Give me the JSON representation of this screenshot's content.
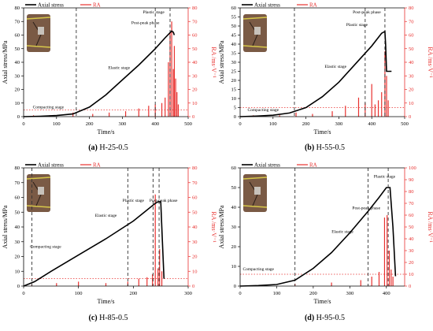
{
  "legend": {
    "stress_label": "Axial stress",
    "ra_label": "RA"
  },
  "colors": {
    "stress": "#000000",
    "ra": "#e8312f",
    "guide": "#333333"
  },
  "chart_data": [
    {
      "id": "a",
      "type": "line",
      "caption_letter": "(a)",
      "caption_text": "H-25-0.5",
      "xlabel": "Time/s",
      "ylabel": "Axial stress/MPa",
      "y2label": "RA /ms·V⁻¹",
      "xlim": [
        0,
        500
      ],
      "ylim": [
        0,
        80
      ],
      "y2lim": [
        0,
        80
      ],
      "xticks": [
        0,
        100,
        200,
        300,
        400,
        500
      ],
      "yticks": [
        0,
        10,
        20,
        30,
        40,
        50,
        60,
        70,
        80
      ],
      "y2ticks": [
        0,
        10,
        20,
        30,
        40,
        50,
        60,
        70,
        80
      ],
      "series": [
        {
          "name": "Axial stress",
          "axis": "left",
          "x": [
            0,
            50,
            100,
            150,
            200,
            250,
            300,
            350,
            400,
            430,
            450,
            455,
            458
          ],
          "y": [
            0,
            0.3,
            0.8,
            2,
            7,
            16,
            27,
            38,
            50,
            58,
            63,
            62,
            60
          ]
        },
        {
          "name": "RA",
          "axis": "right",
          "kind": "bars",
          "x": [
            30,
            80,
            150,
            210,
            260,
            310,
            350,
            380,
            400,
            420,
            430,
            440,
            445,
            450,
            455,
            458,
            462,
            466,
            470
          ],
          "y": [
            1,
            1,
            3,
            2,
            3,
            4,
            6,
            8,
            9,
            10,
            14,
            40,
            62,
            70,
            35,
            52,
            28,
            18,
            9
          ]
        }
      ],
      "threshold_y": 5,
      "dividers": [
        160,
        400,
        445
      ],
      "annotations": [
        {
          "text": "Compacting stage",
          "x": 75,
          "y": 6
        },
        {
          "text": "Elastic stage",
          "x": 290,
          "y": 35
        },
        {
          "text": "Plastic stage",
          "x": 395,
          "y": 76
        },
        {
          "text": "Post-peak phase",
          "x": 370,
          "y": 68
        }
      ]
    },
    {
      "id": "b",
      "type": "line",
      "caption_letter": "(b)",
      "caption_text": "H-55-0.5",
      "xlabel": "Time/s",
      "ylabel": "Axial stress/MPa",
      "y2label": "RA /ms·V⁻¹",
      "xlim": [
        0,
        500
      ],
      "ylim": [
        0,
        60
      ],
      "y2lim": [
        0,
        80
      ],
      "xticks": [
        0,
        100,
        200,
        300,
        400,
        500
      ],
      "yticks": [
        0,
        5,
        10,
        15,
        20,
        25,
        30,
        35,
        40,
        45,
        50,
        55,
        60
      ],
      "y2ticks": [
        0,
        10,
        20,
        30,
        40,
        50,
        60,
        70,
        80
      ],
      "series": [
        {
          "name": "Axial stress",
          "axis": "left",
          "x": [
            0,
            50,
            100,
            150,
            200,
            250,
            300,
            350,
            400,
            430,
            440,
            442,
            445,
            460
          ],
          "y": [
            0,
            0.3,
            0.8,
            2,
            5,
            11,
            19,
            29,
            39,
            46,
            47,
            40,
            25,
            25
          ]
        },
        {
          "name": "RA",
          "axis": "right",
          "kind": "bars",
          "x": [
            40,
            120,
            170,
            220,
            280,
            320,
            360,
            380,
            400,
            410,
            420,
            430,
            440,
            445,
            450
          ],
          "y": [
            1,
            1,
            3,
            2,
            4,
            8,
            14,
            10,
            24,
            9,
            12,
            18,
            48,
            30,
            12
          ]
        }
      ],
      "threshold_y": 5,
      "dividers": [
        165,
        380,
        440
      ],
      "annotations": [
        {
          "text": "Compacting stage",
          "x": 70,
          "y": 3
        },
        {
          "text": "Elastic stage",
          "x": 290,
          "y": 27
        },
        {
          "text": "Plastic stage",
          "x": 355,
          "y": 50
        },
        {
          "text": "Post-peak phase",
          "x": 385,
          "y": 57
        }
      ]
    },
    {
      "id": "c",
      "type": "line",
      "caption_letter": "(c)",
      "caption_text": "H-85-0.5",
      "xlabel": "Time/s",
      "ylabel": "Axial stress/MPa",
      "y2label": "RA /ms·V⁻¹",
      "xlim": [
        0,
        300
      ],
      "ylim": [
        0,
        80
      ],
      "y2lim": [
        0,
        80
      ],
      "xticks": [
        0,
        100,
        200,
        300
      ],
      "yticks": [
        0,
        10,
        20,
        30,
        40,
        50,
        60,
        70,
        80
      ],
      "y2ticks": [
        0,
        10,
        20,
        30,
        40,
        50,
        60,
        70,
        80
      ],
      "series": [
        {
          "name": "Axial stress",
          "axis": "left",
          "x": [
            0,
            20,
            50,
            100,
            150,
            200,
            220,
            240,
            245,
            250,
            253,
            256
          ],
          "y": [
            0,
            3,
            10,
            21,
            32,
            44,
            50,
            56,
            57,
            57,
            30,
            5
          ]
        },
        {
          "name": "RA",
          "axis": "right",
          "kind": "bars",
          "x": [
            15,
            60,
            100,
            150,
            190,
            210,
            225,
            235,
            240,
            245,
            248,
            252
          ],
          "y": [
            1,
            2,
            3,
            2,
            3,
            5,
            6,
            8,
            62,
            12,
            25,
            10
          ]
        }
      ],
      "threshold_y": 5,
      "dividers": [
        15,
        190,
        236,
        247
      ],
      "annotations": [
        {
          "text": "Compacting stage",
          "x": 40,
          "y": 26
        },
        {
          "text": "Elastic stage",
          "x": 150,
          "y": 47
        },
        {
          "text": "Plastic stage",
          "x": 200,
          "y": 57
        },
        {
          "text": "Post-peak phase",
          "x": 255,
          "y": 57
        }
      ]
    },
    {
      "id": "d",
      "type": "line",
      "caption_letter": "(d)",
      "caption_text": "H-95-0.5",
      "xlabel": "Time/s",
      "ylabel": "Axial stress/MPa",
      "y2label": "RA /ms·V⁻¹",
      "xlim": [
        0,
        450
      ],
      "ylim": [
        0,
        60
      ],
      "y2lim": [
        0,
        100
      ],
      "xticks": [
        0,
        100,
        200,
        300,
        400
      ],
      "yticks": [
        0,
        10,
        20,
        30,
        40,
        50,
        60
      ],
      "y2ticks": [
        0,
        10,
        20,
        30,
        40,
        50,
        60,
        70,
        80,
        90,
        100
      ],
      "series": [
        {
          "name": "Axial stress",
          "axis": "left",
          "x": [
            0,
            50,
            100,
            150,
            200,
            250,
            300,
            350,
            380,
            400,
            410,
            418,
            425
          ],
          "y": [
            0,
            0.3,
            0.8,
            3,
            9,
            17,
            27,
            38,
            45,
            50,
            50,
            30,
            5
          ]
        },
        {
          "name": "RA",
          "axis": "right",
          "kind": "bars",
          "x": [
            60,
            150,
            250,
            330,
            360,
            380,
            395,
            402,
            408,
            413,
            418
          ],
          "y": [
            1,
            2,
            3,
            5,
            8,
            12,
            58,
            60,
            30,
            14,
            8
          ]
        }
      ],
      "threshold_y": 6,
      "dividers": [
        150,
        350,
        405
      ],
      "annotations": [
        {
          "text": "Compacting stage",
          "x": 50,
          "y": 8
        },
        {
          "text": "Elastic stage",
          "x": 280,
          "y": 27
        },
        {
          "text": "Plastic stage",
          "x": 395,
          "y": 55
        },
        {
          "text": "Post-peak phase",
          "x": 345,
          "y": 39
        }
      ]
    }
  ]
}
